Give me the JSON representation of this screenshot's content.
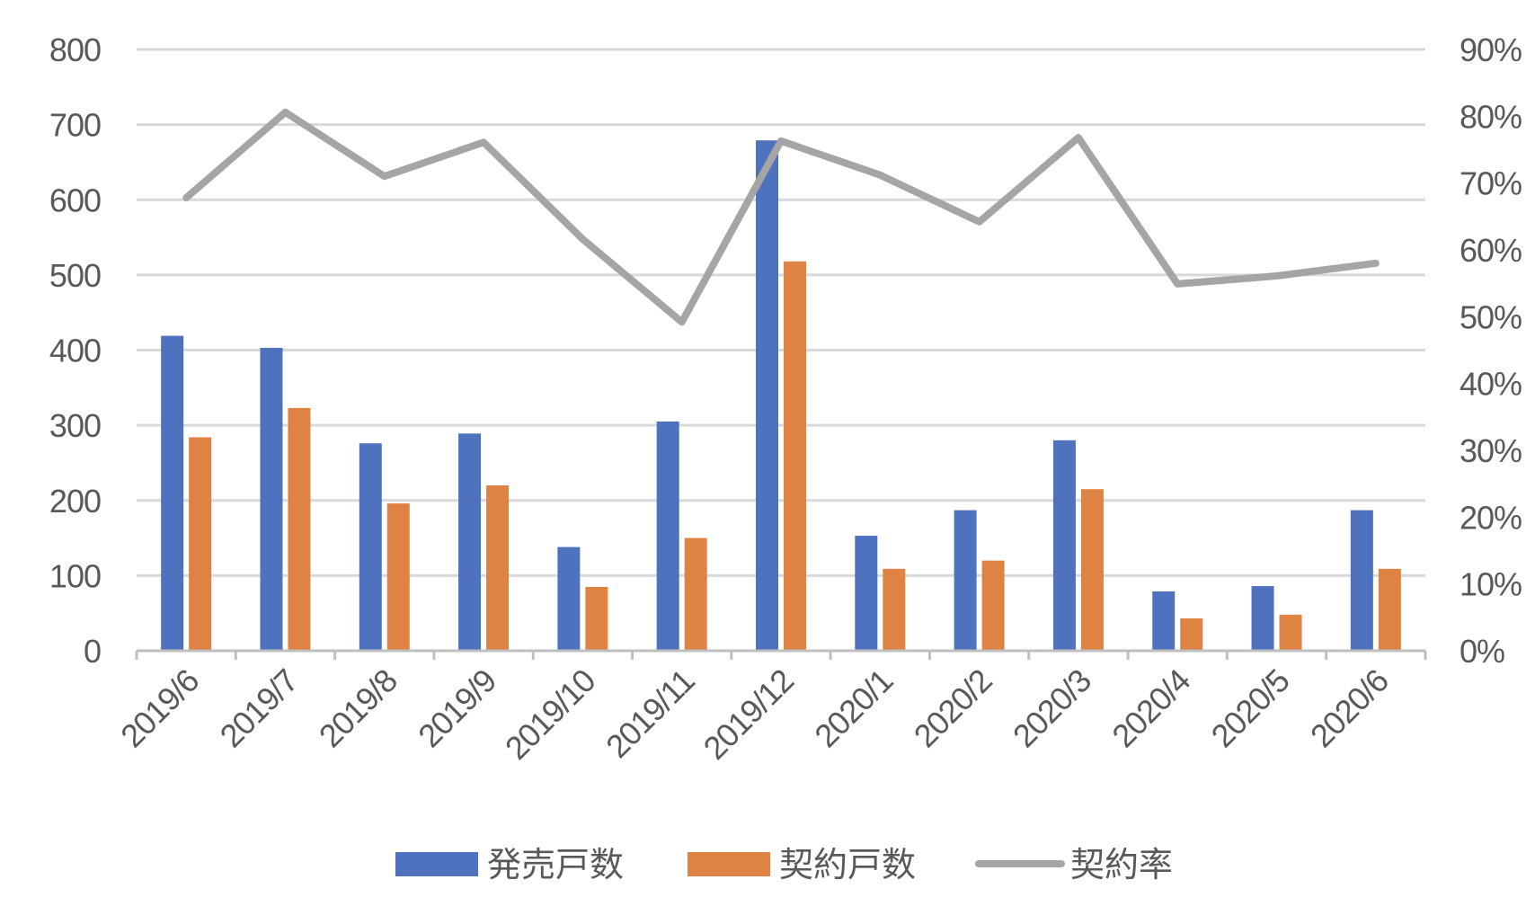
{
  "chart_data": {
    "type": "bar",
    "categories": [
      "2019/6",
      "2019/7",
      "2019/8",
      "2019/9",
      "2019/10",
      "2019/11",
      "2019/12",
      "2020/1",
      "2020/2",
      "2020/3",
      "2020/4",
      "2020/5",
      "2020/6"
    ],
    "series": [
      {
        "name": "発売戸数",
        "type": "bar",
        "axis": "left",
        "color": "#4F72BE",
        "values": [
          419,
          403,
          276,
          289,
          138,
          305,
          679,
          153,
          187,
          280,
          79,
          86,
          187
        ]
      },
      {
        "name": "契約戸数",
        "type": "bar",
        "axis": "left",
        "color": "#DF8344",
        "values": [
          284,
          323,
          196,
          220,
          85,
          150,
          518,
          109,
          120,
          215,
          43,
          48,
          109
        ]
      },
      {
        "name": "契約率",
        "type": "line",
        "axis": "right",
        "color": "#A5A5A5",
        "values": [
          67.8,
          80.6,
          71.0,
          76.1,
          61.6,
          49.2,
          76.3,
          71.2,
          64.2,
          76.8,
          54.9,
          56.1,
          58.0
        ]
      }
    ],
    "y_left": {
      "min": 0,
      "max": 800,
      "step": 100,
      "ticks": [
        "0",
        "100",
        "200",
        "300",
        "400",
        "500",
        "600",
        "700",
        "800"
      ]
    },
    "y_right": {
      "min": 0,
      "max": 90,
      "step": 10,
      "ticks": [
        "0%",
        "10%",
        "20%",
        "30%",
        "40%",
        "50%",
        "60%",
        "70%",
        "80%",
        "90%"
      ]
    },
    "grid": true,
    "legend_position": "bottom",
    "colors": {
      "gridline": "#D9D9D9",
      "tick_text": "#595959",
      "axis": "#BFBFBF"
    }
  }
}
